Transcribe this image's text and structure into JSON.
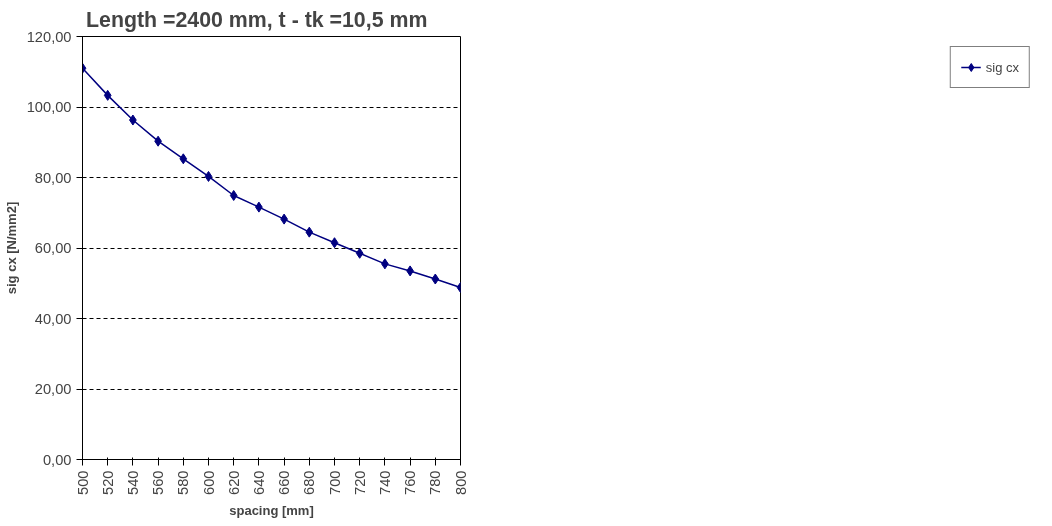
{
  "chart_data": {
    "type": "line",
    "title": "Length =2400 mm,     t - tk  =10,5 mm",
    "xlabel": "spacing [mm]",
    "ylabel": "sig cx [N/mm2]",
    "x": [
      500,
      520,
      540,
      560,
      580,
      600,
      620,
      640,
      660,
      680,
      700,
      720,
      740,
      760,
      780,
      800
    ],
    "series": [
      {
        "name": "sig cx",
        "color": "#000080",
        "values": [
          111.0,
          103.3,
          96.3,
          90.3,
          85.3,
          80.3,
          74.9,
          71.6,
          68.2,
          64.5,
          61.5,
          58.5,
          55.5,
          53.5,
          51.2,
          48.8
        ]
      }
    ],
    "xlim": [
      500,
      800
    ],
    "xticks": [
      500,
      520,
      540,
      560,
      580,
      600,
      620,
      640,
      660,
      680,
      700,
      720,
      740,
      760,
      780,
      800
    ],
    "ylim": [
      0,
      120
    ],
    "yticks": [
      {
        "value": 0,
        "label": "0,00"
      },
      {
        "value": 20,
        "label": "20,00"
      },
      {
        "value": 40,
        "label": "40,00"
      },
      {
        "value": 60,
        "label": "60,00"
      },
      {
        "value": 80,
        "label": "80,00"
      },
      {
        "value": 100,
        "label": "100,00"
      },
      {
        "value": 120,
        "label": "120,00"
      }
    ],
    "grid": "y",
    "legend": "right",
    "marker": "diamond",
    "line_style": "solid"
  }
}
